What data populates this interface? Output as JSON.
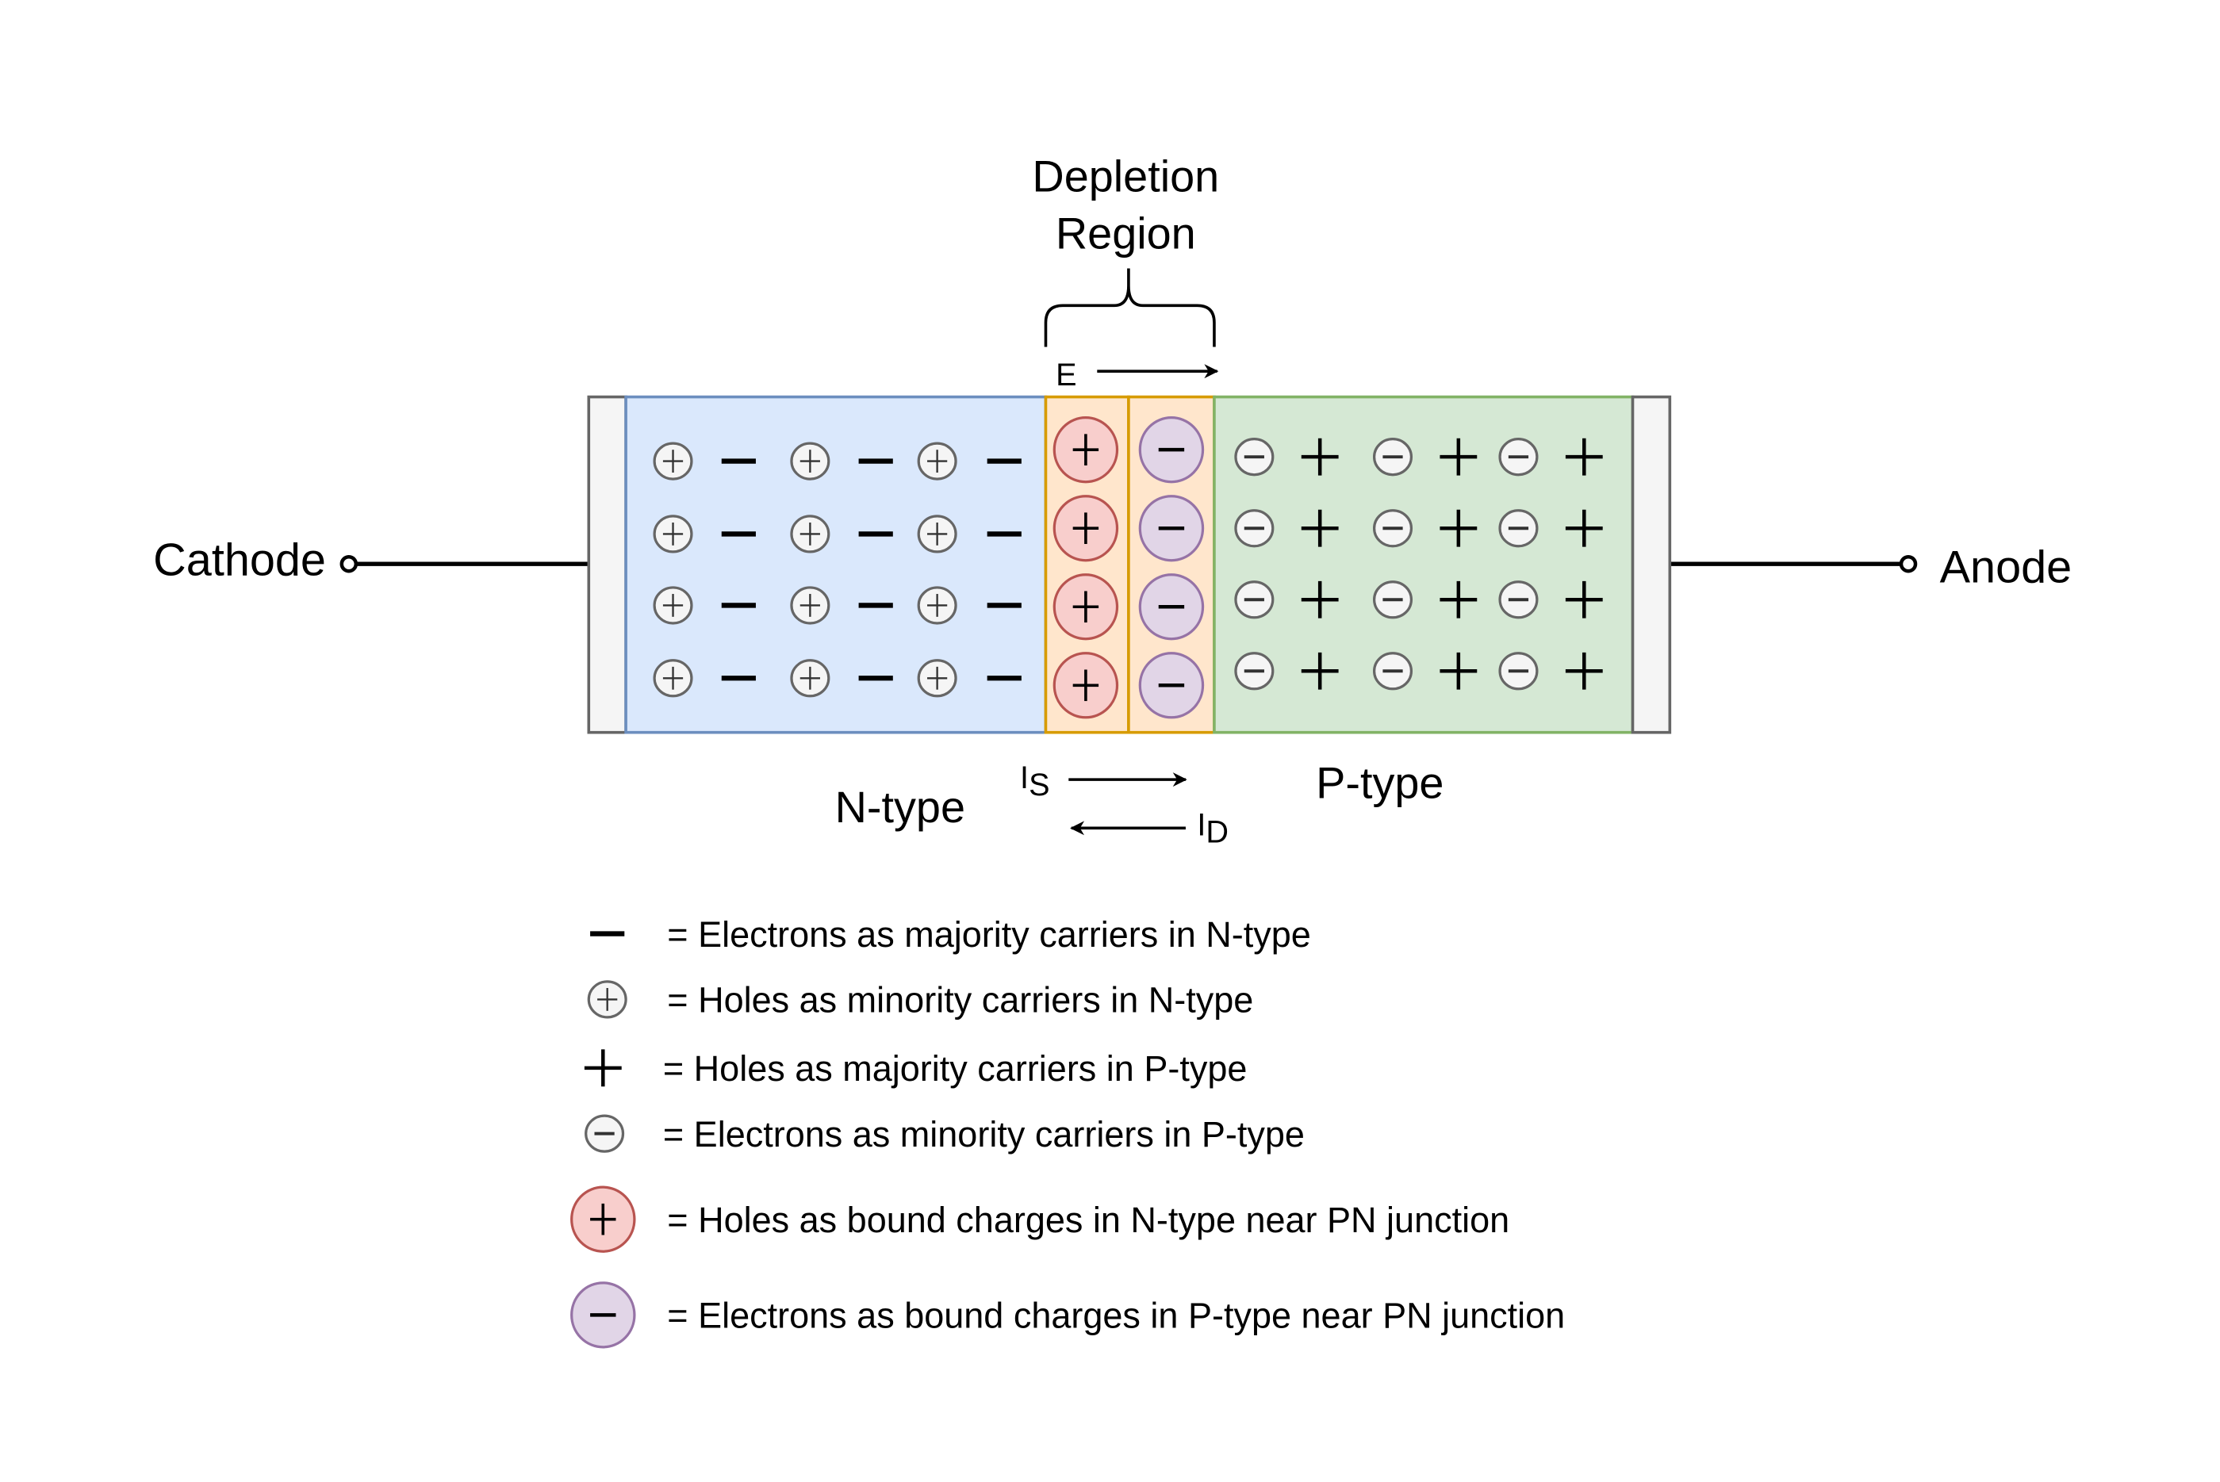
{
  "labels": {
    "depletion_line1": "Depletion",
    "depletion_line2": "Region",
    "field": "E",
    "cathode": "Cathode",
    "anode": "Anode",
    "n_type": "N-type",
    "p_type": "P-type",
    "is_main": "I",
    "is_sub": "S",
    "id_main": "I",
    "id_sub": "D"
  },
  "regions": {
    "n_rows": 4,
    "n_pattern": [
      "hole-minority",
      "electron-majority",
      "hole-minority",
      "electron-majority",
      "hole-minority",
      "electron-majority"
    ],
    "depletion_rows": 4,
    "depletion_pattern": [
      "bound-hole",
      "bound-electron"
    ],
    "p_rows": 4,
    "p_pattern": [
      "electron-minority",
      "hole-majority",
      "electron-minority",
      "hole-majority",
      "electron-minority",
      "hole-majority"
    ]
  },
  "legend": [
    {
      "symbol": "electron-majority",
      "text": "= Electrons as majority carriers in N-type"
    },
    {
      "symbol": "hole-minority",
      "text": "= Holes as minority carriers in N-type"
    },
    {
      "symbol": "hole-majority",
      "text": "= Holes as majority carriers in P-type"
    },
    {
      "symbol": "electron-minority",
      "text": "= Electrons as minority carriers in P-type"
    },
    {
      "symbol": "bound-hole",
      "text": "= Holes as bound charges in N-type near PN junction"
    },
    {
      "symbol": "bound-electron",
      "text": "= Electrons as bound charges in P-type near PN junction"
    }
  ],
  "colors": {
    "n_fill": "#dae8fc",
    "n_stroke": "#6c8ebf",
    "dep_fill": "#ffe6cc",
    "dep_stroke": "#d79b00",
    "p_fill": "#d5e8d4",
    "p_stroke": "#82b366",
    "contact_fill": "#f5f5f5",
    "contact_stroke": "#666666",
    "bound_hole_fill": "#f8cecc",
    "bound_hole_stroke": "#b85450",
    "bound_electron_fill": "#e1d5e7",
    "bound_electron_stroke": "#9673a6"
  }
}
